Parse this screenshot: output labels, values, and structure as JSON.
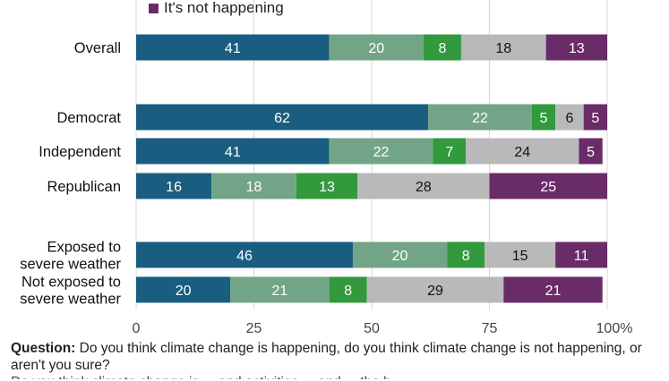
{
  "legend": {
    "label": "It's not happening",
    "color": "#6a2c68"
  },
  "chart_data": {
    "type": "bar",
    "orientation": "horizontal",
    "stacked": true,
    "categories": [
      "Overall",
      "Democrat",
      "Independent",
      "Republican",
      "Exposed to\nsevere weather",
      "Not exposed to\nsevere weather"
    ],
    "category_groups": [
      [
        0
      ],
      [
        1,
        2,
        3
      ],
      [
        4,
        5
      ]
    ],
    "series": [
      {
        "values": [
          41,
          62,
          41,
          16,
          46,
          20
        ],
        "color": "#195e80",
        "label_color": "#ffffff"
      },
      {
        "values": [
          20,
          22,
          22,
          18,
          20,
          21
        ],
        "color": "#72a587",
        "label_color": "#ffffff"
      },
      {
        "values": [
          8,
          5,
          7,
          13,
          8,
          8
        ],
        "color": "#32993d",
        "label_color": "#ffffff"
      },
      {
        "values": [
          18,
          6,
          24,
          28,
          15,
          29
        ],
        "color": "#b9b9b9",
        "label_color": "#111111"
      },
      {
        "name": "It's not happening",
        "values": [
          13,
          5,
          5,
          25,
          11,
          21
        ],
        "color": "#6a2c68",
        "label_color": "#ffffff"
      }
    ],
    "xlim": [
      0,
      100
    ],
    "xticks": [
      "0",
      "25",
      "50",
      "75",
      "100%"
    ],
    "grid": true
  },
  "caption": {
    "question_label": "Question:",
    "question_text": " Do you think climate change is happening, do you think climate change is not happening, or aren't you sure?",
    "cut_line": "Do you think climate change is ... and activities ... and ... the h..."
  }
}
